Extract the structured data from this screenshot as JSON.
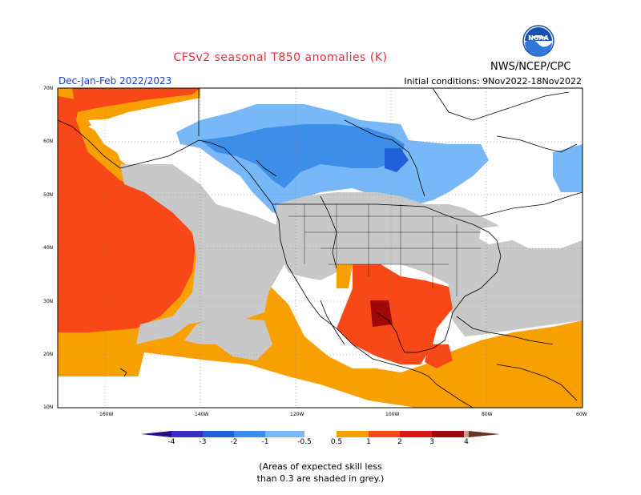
{
  "header": {
    "title": "CFSv2 seasonal T850 anomalies (K)",
    "agency": "NWS/NCEP/CPC",
    "season": "Dec-Jan-Feb 2022/2023",
    "initial_conditions": "Initial conditions: 9Nov2022-18Nov2022",
    "logo_text": "NOAA",
    "logo_icon": "noaa-logo-icon"
  },
  "axes": {
    "lat_labels": [
      "70N",
      "60N",
      "50N",
      "40N",
      "30N",
      "20N",
      "10N"
    ],
    "lon_labels": [
      "160W",
      "140W",
      "120W",
      "100W",
      "80W",
      "60W"
    ]
  },
  "legend": {
    "labels": [
      "-4",
      "-3",
      "-2",
      "-1",
      "-0.5",
      "0.5",
      "1",
      "2",
      "3",
      "4"
    ],
    "colors": {
      "below_-4": "#2a0a8a",
      "-4_-3": "#3a2ec8",
      "-3_-2": "#2060d8",
      "-2_-1": "#3c8ee8",
      "-1_-0.5": "#78b8f8",
      "neutral": "#ffffff",
      "0.5_1": "#f8a000",
      "1_2": "#f84818",
      "2_3": "#d81818",
      "3_4": "#a00808",
      "above_4": "#c0a090",
      "low_skill": "#c8c8c8"
    }
  },
  "note": {
    "line1": "(Areas of expected skill less",
    "line2": "than 0.3 are shaded in grey.)"
  }
}
